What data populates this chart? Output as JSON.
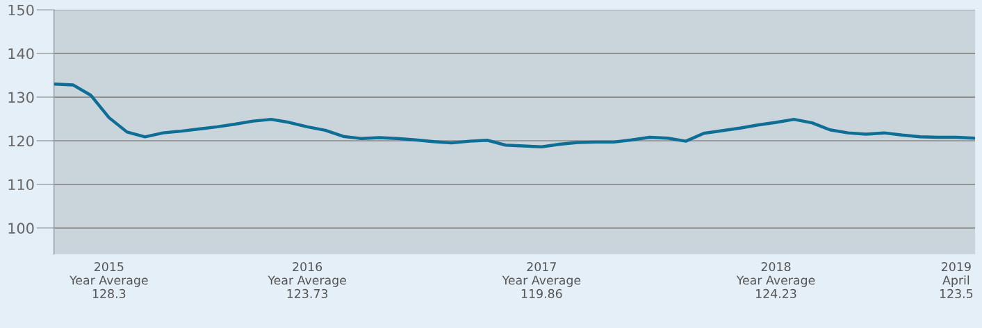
{
  "chart_data": {
    "type": "line",
    "categories": [
      null,
      null,
      null,
      "2015\nYear Average\n128.3",
      null,
      null,
      null,
      null,
      null,
      null,
      null,
      null,
      null,
      null,
      "2016\nYear Average\n123.73",
      null,
      null,
      null,
      null,
      null,
      null,
      null,
      null,
      null,
      null,
      null,
      null,
      "2017\nYear Average\n119.86",
      null,
      null,
      null,
      null,
      null,
      null,
      null,
      null,
      null,
      null,
      null,
      null,
      "2018\nYear Average\n124.23",
      null,
      null,
      null,
      null,
      null,
      null,
      null,
      null,
      null,
      "2019\nApril\n123.5",
      null
    ],
    "series": [
      {
        "color": "#0e6e96",
        "values": [
          133.0,
          132.8,
          130.4,
          125.3,
          122.0,
          120.9,
          121.8,
          122.2,
          122.7,
          123.2,
          123.8,
          124.5,
          124.9,
          124.2,
          123.2,
          122.4,
          121.0,
          120.5,
          120.7,
          120.5,
          120.2,
          119.8,
          119.5,
          119.9,
          120.1,
          119.0,
          118.8,
          118.6,
          119.2,
          119.6,
          119.7,
          119.7,
          120.2,
          120.8,
          120.6,
          119.9,
          121.7,
          122.3,
          122.9,
          123.6,
          124.2,
          124.9,
          124.1,
          122.5,
          121.8,
          121.5,
          121.8,
          121.3,
          120.9,
          120.8,
          120.8,
          120.6
        ]
      }
    ],
    "ylim": [
      94,
      150
    ],
    "yticks": [
      100,
      110,
      120,
      130,
      140,
      150
    ],
    "grid": "y",
    "legend": false,
    "marker": "none",
    "line_style": "solid"
  }
}
